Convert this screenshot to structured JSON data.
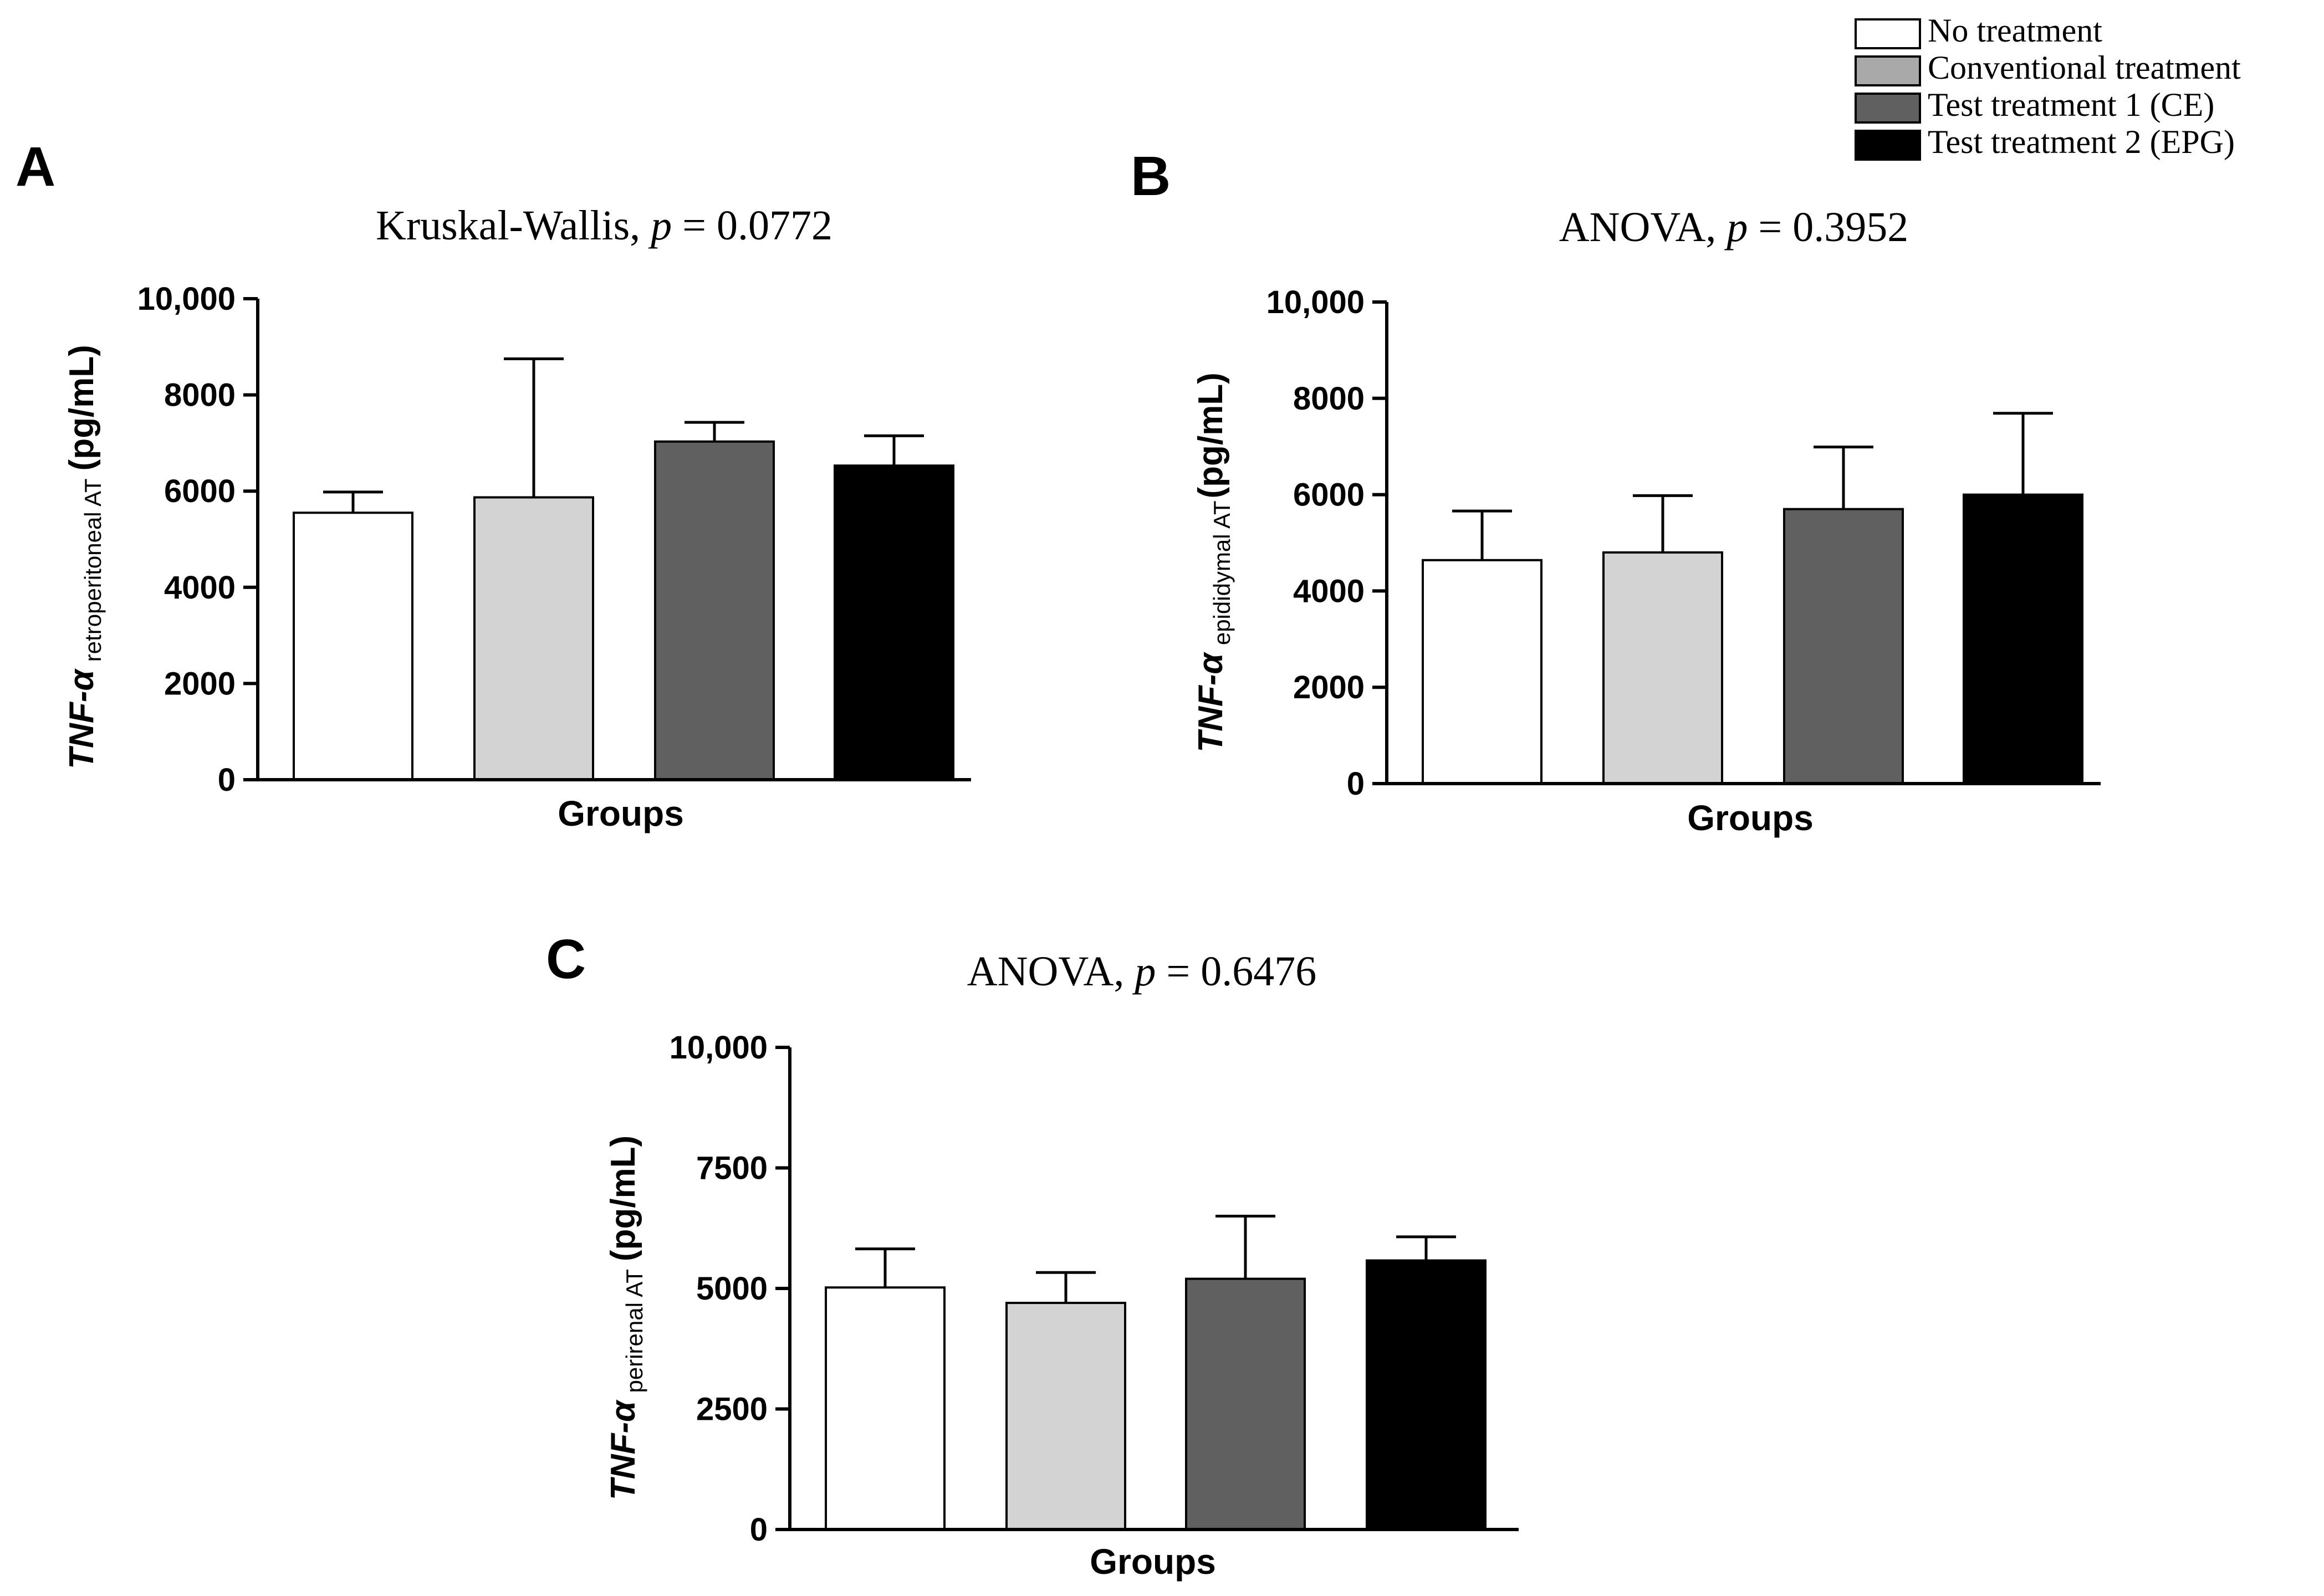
{
  "legend": {
    "items": [
      {
        "label": "No treatment",
        "color": "#ffffff"
      },
      {
        "label": "Conventional treatment",
        "color": "#a9a9a9"
      },
      {
        "label": "Test treatment 1 (CE)",
        "color": "#606060"
      },
      {
        "label": "Test treatment 2 (EPG)",
        "color": "#000000"
      }
    ]
  },
  "bar_colors": [
    "#ffffff",
    "#d3d3d3",
    "#606060",
    "#000000"
  ],
  "chart_data": [
    {
      "type": "bar",
      "panel_letter": "A",
      "title": {
        "test": "Kruskal-Wallis, ",
        "p": "p",
        "value": " = 0.0772"
      },
      "ylabel": {
        "main": "TNF-α",
        "subscript": "retroperitoneal AT",
        "unit": "(pg/mL)"
      },
      "xlabel": "Groups",
      "categories": [
        "No treatment",
        "Conventional treatment",
        "Test treatment 1 (CE)",
        "Test treatment 2 (EPG)"
      ],
      "values": [
        5550,
        5870,
        7030,
        6530
      ],
      "errors": [
        430,
        2880,
        400,
        620
      ],
      "ylim": [
        0,
        10000
      ],
      "yticks": [
        0,
        2000,
        4000,
        6000,
        8000,
        10000
      ],
      "ytick_labels": [
        "0",
        "2000",
        "4000",
        "6000",
        "8000",
        "10,000"
      ]
    },
    {
      "type": "bar",
      "panel_letter": "B",
      "title": {
        "test": "ANOVA, ",
        "p": "p",
        "value": " = 0.3952"
      },
      "ylabel": {
        "main": "TNF-α",
        "subscript": "epididymal AT",
        "unit": "(pg/mL)"
      },
      "xlabel": "Groups",
      "categories": [
        "No treatment",
        "Conventional treatment",
        "Test treatment 1 (CE)",
        "Test treatment 2 (EPG)"
      ],
      "values": [
        4640,
        4800,
        5700,
        6000
      ],
      "errors": [
        1020,
        1180,
        1290,
        1690
      ],
      "ylim": [
        0,
        10000
      ],
      "yticks": [
        0,
        2000,
        4000,
        6000,
        8000,
        10000
      ],
      "ytick_labels": [
        "0",
        "2000",
        "4000",
        "6000",
        "8000",
        "10,000"
      ]
    },
    {
      "type": "bar",
      "panel_letter": "C",
      "title": {
        "test": "ANOVA, ",
        "p": "p",
        "value": " = 0.6476"
      },
      "ylabel": {
        "main": "TNF-α",
        "subscript": "perirenal AT",
        "unit": "(pg/mL)"
      },
      "xlabel": "Groups",
      "categories": [
        "No treatment",
        "Conventional treatment",
        "Test treatment 1 (CE)",
        "Test treatment 2 (EPG)"
      ],
      "values": [
        5020,
        4700,
        5200,
        5580
      ],
      "errors": [
        800,
        630,
        1300,
        490
      ],
      "ylim": [
        0,
        10000
      ],
      "yticks": [
        0,
        2500,
        5000,
        7500,
        10000
      ],
      "ytick_labels": [
        "0",
        "2500",
        "5000",
        "7500",
        "10,000"
      ]
    }
  ]
}
